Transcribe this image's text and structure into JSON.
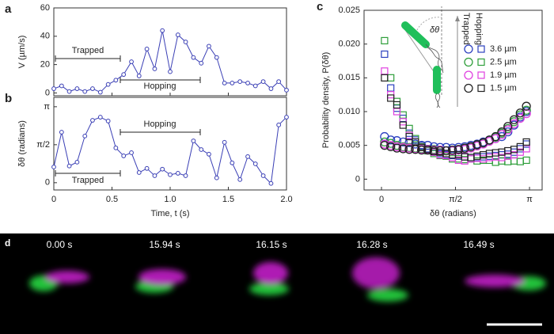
{
  "chart_data": [
    {
      "type": "line",
      "panel_label": "a",
      "ylabel": "V (µm/s)",
      "color": "#3a3fb5",
      "x": [
        0,
        0.067,
        0.133,
        0.2,
        0.267,
        0.333,
        0.4,
        0.467,
        0.533,
        0.6,
        0.667,
        0.733,
        0.8,
        0.867,
        0.933,
        1,
        1.067,
        1.133,
        1.2,
        1.267,
        1.333,
        1.4,
        1.467,
        1.533,
        1.6,
        1.667,
        1.733,
        1.8,
        1.867,
        1.933,
        2
      ],
      "values": [
        3,
        5,
        1,
        3,
        1,
        3,
        0.5,
        6,
        9,
        13,
        22,
        12,
        31,
        17,
        44,
        15,
        41,
        36,
        25,
        21,
        33,
        25,
        7,
        7,
        8,
        7,
        5,
        8,
        3,
        8,
        2
      ],
      "xlim": [
        0,
        2
      ],
      "ylim": [
        -2,
        60
      ],
      "yticks": [
        0,
        20,
        40,
        60
      ],
      "annotations": [
        "Trapped",
        "Hopping"
      ]
    },
    {
      "type": "line",
      "panel_label": "b",
      "ylabel": "δθ (radians)",
      "xlabel": "Time, t (s)",
      "color": "#3a3fb5",
      "x": [
        0,
        0.067,
        0.133,
        0.2,
        0.267,
        0.333,
        0.4,
        0.467,
        0.533,
        0.6,
        0.667,
        0.733,
        0.8,
        0.867,
        0.933,
        1,
        1.067,
        1.133,
        1.2,
        1.267,
        1.333,
        1.4,
        1.467,
        1.533,
        1.6,
        1.667,
        1.733,
        1.8,
        1.867,
        1.933,
        2
      ],
      "values": [
        0.65,
        2.09,
        0.69,
        0.85,
        1.93,
        2.58,
        2.71,
        2.55,
        1.44,
        1.11,
        1.24,
        0.42,
        0.59,
        0.29,
        0.56,
        0.33,
        0.39,
        0.29,
        1.73,
        1.37,
        1.18,
        0.2,
        1.67,
        0.82,
        0.13,
        1.08,
        0.78,
        0.29,
        -0.03,
        2.39,
        2.71
      ],
      "xlim": [
        0,
        2
      ],
      "ylim": [
        -0.3,
        3.53
      ],
      "xticks": [
        0,
        0.5,
        {
          "value": 1,
          "label": "1.0"
        },
        1.5,
        {
          "value": 2,
          "label": "2.0"
        }
      ],
      "yticks": [
        0,
        {
          "value": 1.571,
          "label": "π/2"
        },
        {
          "value": 3.142,
          "label": "π"
        }
      ],
      "annotations": [
        "Hopping",
        "Trapped"
      ]
    },
    {
      "type": "scatter",
      "panel_label": "c",
      "ylabel": "Probability density, P(δθ)",
      "xlabel": "δθ (radians)",
      "annotation": "δθ",
      "legend_headers": [
        "Trapped",
        "Hopping"
      ],
      "x": [
        0.065,
        0.196,
        0.327,
        0.458,
        0.589,
        0.72,
        0.851,
        0.982,
        1.113,
        1.244,
        1.374,
        1.505,
        1.636,
        1.767,
        1.898,
        2.029,
        2.16,
        2.291,
        2.422,
        2.553,
        2.683,
        2.814,
        2.945,
        3.076
      ],
      "xlim": [
        -0.37,
        3.41
      ],
      "ylim": [
        -0.0016,
        0.025
      ],
      "xticks": [
        0,
        {
          "value": 1.571,
          "label": "π/2"
        },
        {
          "value": 3.142,
          "label": "π"
        }
      ],
      "yticks": [
        0,
        0.005,
        {
          "value": 0.01,
          "label": "0.010"
        },
        0.015,
        {
          "value": 0.02,
          "label": "0.020"
        },
        0.025
      ],
      "series": [
        {
          "name": "3.6 µm",
          "color": "#2b3fbf",
          "trapped": [
            0.0063,
            0.0058,
            0.0057,
            0.0055,
            0.0054,
            0.0052,
            0.005,
            0.005,
            0.0048,
            0.0047,
            0.0047,
            0.0046,
            0.0047,
            0.0048,
            0.005,
            0.0052,
            0.0055,
            0.0058,
            0.006,
            0.0063,
            0.007,
            0.008,
            0.0092,
            0.01
          ],
          "hopping": [
            0.0185,
            0.0135,
            0.0105,
            0.009,
            0.0068,
            0.0058,
            0.005,
            0.0045,
            0.004,
            0.0038,
            0.0036,
            0.0035,
            0.0034,
            0.0033,
            0.0032,
            0.0032,
            0.0033,
            0.0034,
            0.0035,
            0.0036,
            0.0037,
            0.004,
            0.0045,
            0.0052
          ]
        },
        {
          "name": "2.5 µm",
          "color": "#2e9e3a",
          "trapped": [
            0.0055,
            0.0053,
            0.005,
            0.0048,
            0.0047,
            0.0046,
            0.0045,
            0.0044,
            0.0044,
            0.0043,
            0.0042,
            0.0042,
            0.0043,
            0.0045,
            0.0047,
            0.005,
            0.0053,
            0.0057,
            0.0062,
            0.0068,
            0.0075,
            0.0085,
            0.0095,
            0.0102
          ],
          "hopping": [
            0.0205,
            0.015,
            0.0115,
            0.0095,
            0.0075,
            0.006,
            0.0048,
            0.0042,
            0.0038,
            0.0035,
            0.0034,
            0.003,
            0.003,
            0.0029,
            0.003,
            0.0027,
            0.0028,
            0.0028,
            0.0025,
            0.0027,
            0.0026,
            0.0027,
            0.0026,
            0.0028
          ]
        },
        {
          "name": "1.9 µm",
          "color": "#e040e0",
          "trapped": [
            0.0052,
            0.005,
            0.0048,
            0.0047,
            0.0046,
            0.0045,
            0.0044,
            0.0044,
            0.0043,
            0.0043,
            0.0042,
            0.0042,
            0.0043,
            0.0044,
            0.0046,
            0.0049,
            0.0052,
            0.0056,
            0.006,
            0.0066,
            0.0073,
            0.0082,
            0.009,
            0.0097
          ],
          "hopping": [
            0.016,
            0.0125,
            0.01,
            0.0085,
            0.0065,
            0.0055,
            0.0047,
            0.0043,
            0.004,
            0.0036,
            0.0035,
            0.0032,
            0.0028,
            0.0027,
            0.003,
            0.0031,
            0.003,
            0.0032,
            0.0033,
            0.0032,
            0.0034,
            0.0036,
            0.004,
            0.0045
          ]
        },
        {
          "name": "1.5 µm",
          "color": "#222222",
          "trapped": [
            0.005,
            0.0048,
            0.0046,
            0.0045,
            0.0044,
            0.0044,
            0.0043,
            0.0043,
            0.0042,
            0.0042,
            0.0042,
            0.0043,
            0.0044,
            0.0046,
            0.0048,
            0.0051,
            0.0054,
            0.0058,
            0.0063,
            0.007,
            0.0078,
            0.0088,
            0.0098,
            0.0108
          ],
          "hopping": [
            0.015,
            0.012,
            0.011,
            0.008,
            0.0063,
            0.0055,
            0.0047,
            0.0044,
            0.0041,
            0.004,
            0.0038,
            0.0036,
            0.0036,
            0.0033,
            0.0032,
            0.0034,
            0.0036,
            0.0038,
            0.0039,
            0.004,
            0.0042,
            0.0044,
            0.0048,
            0.0055
          ]
        }
      ]
    }
  ],
  "panel_d": {
    "label": "d",
    "times": [
      "0.00 s",
      "15.94 s",
      "16.15 s",
      "16.28 s",
      "16.49 s"
    ]
  }
}
